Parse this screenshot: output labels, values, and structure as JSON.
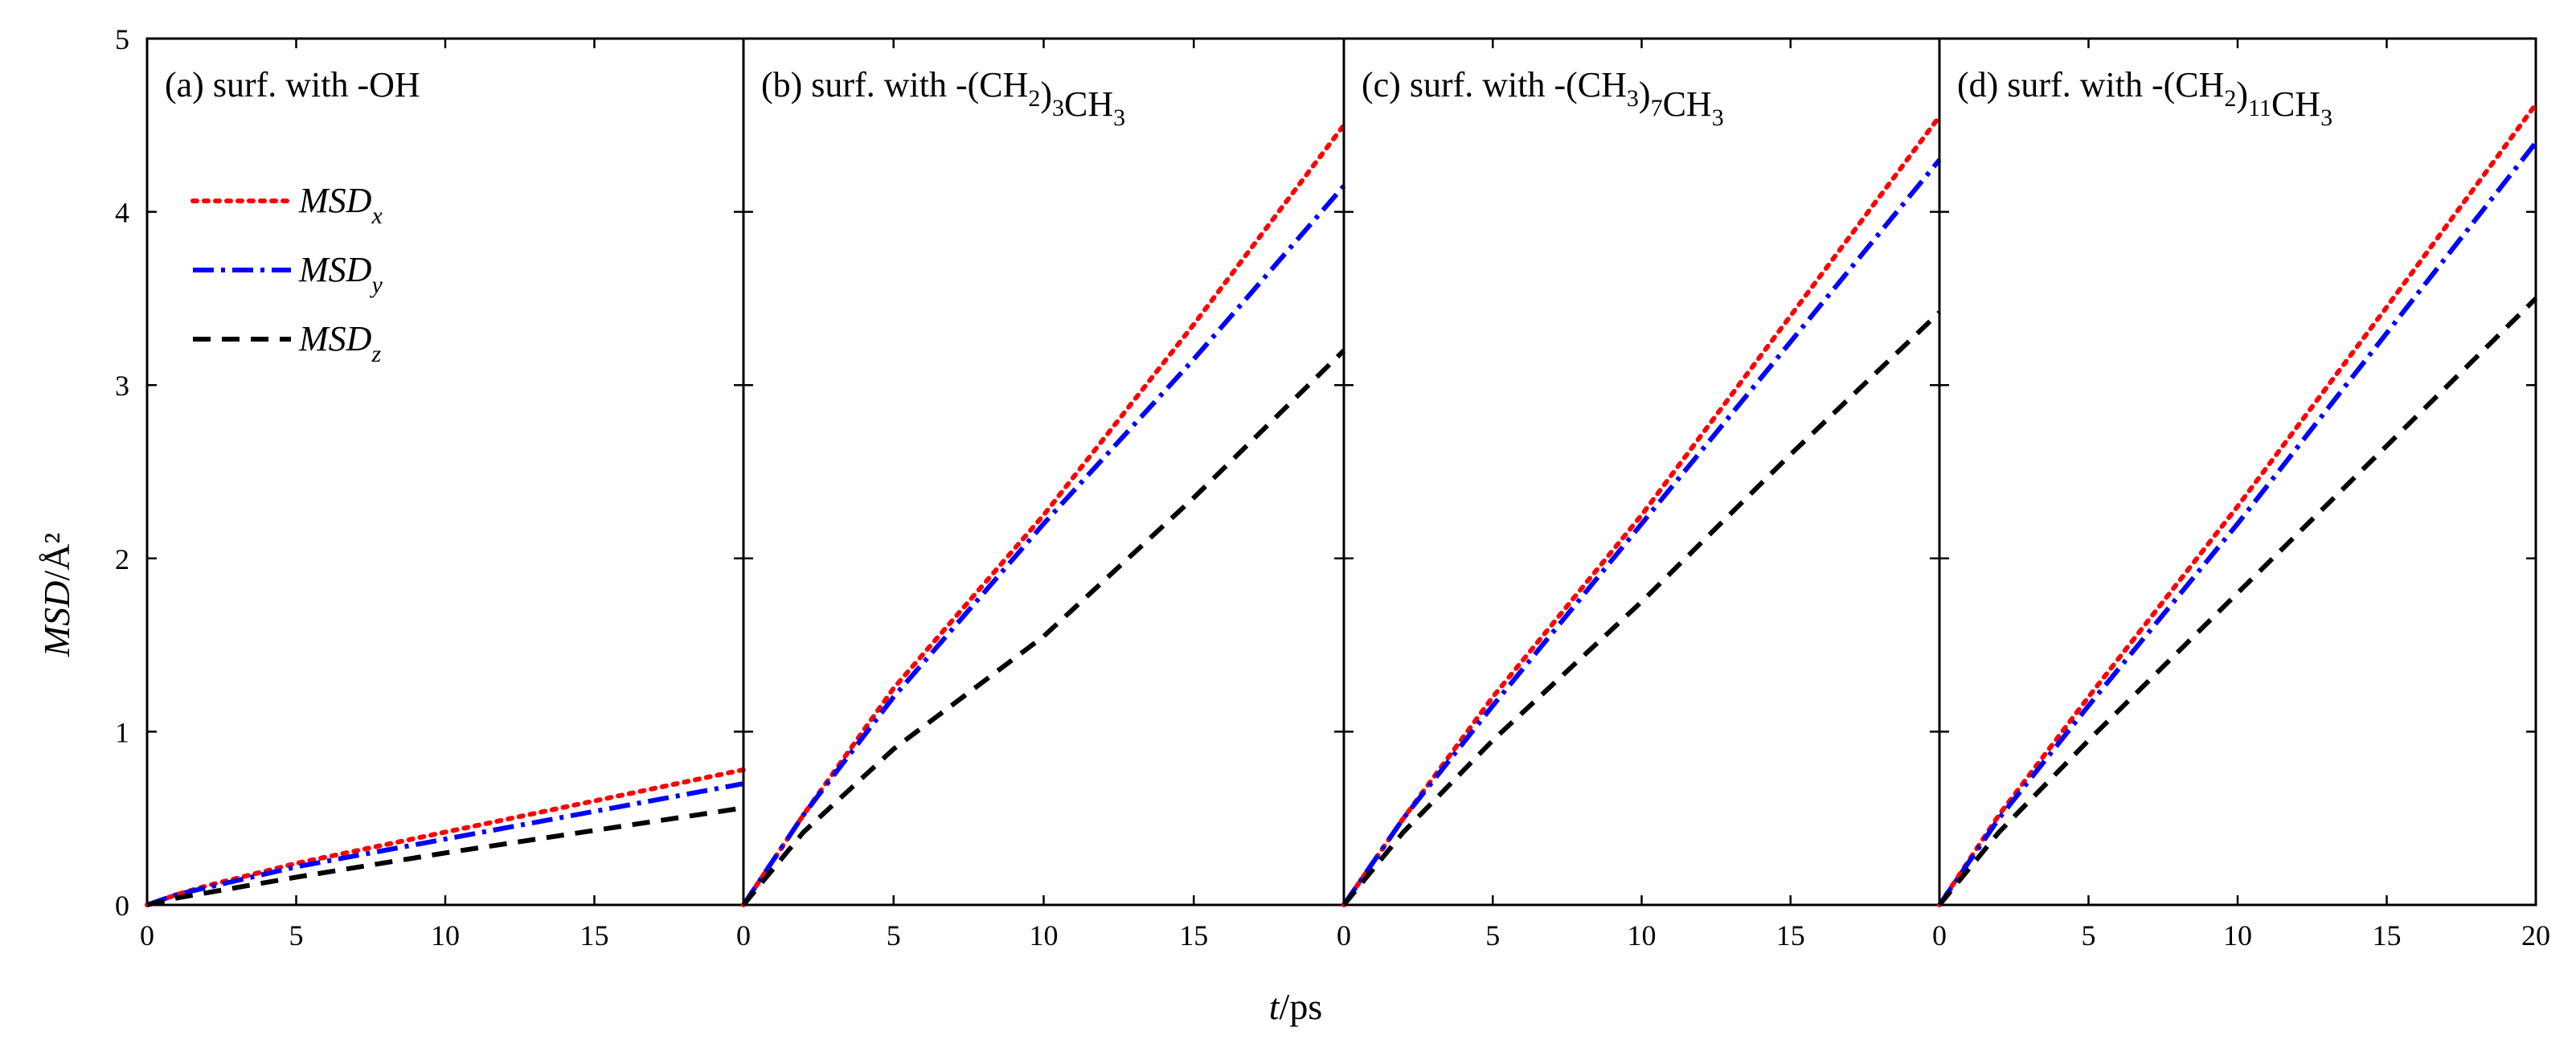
{
  "chart_data": {
    "type": "line",
    "shared": {
      "ylabel_italic": "MSD",
      "ylabel_unit": "/Å²",
      "xlabel_italic": "t",
      "xlabel_unit": "/ps",
      "xlim": [
        0,
        20
      ],
      "ylim": [
        0,
        5
      ],
      "x_ticks": [
        "0",
        "5",
        "10",
        "15"
      ],
      "x_ticks_last_panel": [
        "0",
        "5",
        "10",
        "15",
        "20"
      ],
      "y_ticks": [
        "0",
        "1",
        "2",
        "3",
        "4",
        "5"
      ],
      "legend": [
        {
          "base": "MSD",
          "sub": "x",
          "color": "#ff0000",
          "style": "dotted"
        },
        {
          "base": "MSD",
          "sub": "y",
          "color": "#0000ff",
          "style": "dash-dot"
        },
        {
          "base": "MSD",
          "sub": "z",
          "color": "#000000",
          "style": "dashed"
        }
      ]
    },
    "panels": [
      {
        "id": "a",
        "title": "(a) surf. with -OH",
        "title_parts": [
          {
            "t": "(a) surf. with -OH"
          }
        ],
        "series": [
          {
            "name": "MSD_x",
            "color": "#ff0000",
            "x": [
              0,
              1,
              2,
              5,
              10,
              15,
              20
            ],
            "y": [
              0,
              0.06,
              0.11,
              0.24,
              0.42,
              0.6,
              0.78
            ]
          },
          {
            "name": "MSD_y",
            "color": "#0000ff",
            "x": [
              0,
              1,
              2,
              5,
              10,
              15,
              20
            ],
            "y": [
              0,
              0.06,
              0.1,
              0.22,
              0.38,
              0.54,
              0.7
            ]
          },
          {
            "name": "MSD_z",
            "color": "#000000",
            "x": [
              0,
              1,
              2,
              5,
              10,
              15,
              20
            ],
            "y": [
              0,
              0.04,
              0.07,
              0.16,
              0.3,
              0.43,
              0.56
            ]
          }
        ]
      },
      {
        "id": "b",
        "title": "(b) surf. with -(CH2)3CH3",
        "title_parts": [
          {
            "t": "(b) surf. with -(CH"
          },
          {
            "t": "2",
            "sub": true
          },
          {
            "t": ")"
          },
          {
            "t": "3",
            "sub": true
          },
          {
            "t": "CH"
          },
          {
            "t": "3",
            "sub": true
          }
        ],
        "series": [
          {
            "name": "MSD_x",
            "color": "#ff0000",
            "x": [
              0,
              2,
              5,
              10,
              15,
              20
            ],
            "y": [
              0,
              0.52,
              1.25,
              2.25,
              3.35,
              4.5
            ]
          },
          {
            "name": "MSD_y",
            "color": "#0000ff",
            "x": [
              0,
              2,
              5,
              10,
              15,
              20
            ],
            "y": [
              0,
              0.52,
              1.2,
              2.2,
              3.15,
              4.15
            ]
          },
          {
            "name": "MSD_z",
            "color": "#000000",
            "x": [
              0,
              2,
              5,
              10,
              15,
              20
            ],
            "y": [
              0,
              0.42,
              0.9,
              1.55,
              2.35,
              3.2
            ]
          }
        ]
      },
      {
        "id": "c",
        "title": "(c) surf. with -(CH3)7CH3",
        "title_parts": [
          {
            "t": "(c) surf. with -(CH"
          },
          {
            "t": "3",
            "sub": true
          },
          {
            "t": ")"
          },
          {
            "t": "7",
            "sub": true
          },
          {
            "t": "CH"
          },
          {
            "t": "3",
            "sub": true
          }
        ],
        "series": [
          {
            "name": "MSD_x",
            "color": "#ff0000",
            "x": [
              0,
              2,
              5,
              10,
              15,
              20
            ],
            "y": [
              0,
              0.5,
              1.2,
              2.25,
              3.4,
              4.55
            ]
          },
          {
            "name": "MSD_y",
            "color": "#0000ff",
            "x": [
              0,
              2,
              5,
              10,
              15,
              20
            ],
            "y": [
              0,
              0.5,
              1.15,
              2.2,
              3.25,
              4.3
            ]
          },
          {
            "name": "MSD_z",
            "color": "#000000",
            "x": [
              0,
              2,
              5,
              10,
              15,
              20
            ],
            "y": [
              0,
              0.42,
              0.95,
              1.75,
              2.6,
              3.42
            ]
          }
        ]
      },
      {
        "id": "d",
        "title": "(d) surf. with -(CH2)11CH3",
        "title_parts": [
          {
            "t": "(d) surf. with -(CH"
          },
          {
            "t": "2",
            "sub": true
          },
          {
            "t": ")"
          },
          {
            "t": "11",
            "sub": true
          },
          {
            "t": "CH"
          },
          {
            "t": "3",
            "sub": true
          }
        ],
        "series": [
          {
            "name": "MSD_x",
            "color": "#ff0000",
            "x": [
              0,
              2,
              5,
              10,
              15,
              20
            ],
            "y": [
              0,
              0.52,
              1.2,
              2.3,
              3.45,
              4.62
            ]
          },
          {
            "name": "MSD_y",
            "color": "#0000ff",
            "x": [
              0,
              2,
              5,
              10,
              15,
              20
            ],
            "y": [
              0,
              0.5,
              1.15,
              2.2,
              3.3,
              4.4
            ]
          },
          {
            "name": "MSD_z",
            "color": "#000000",
            "x": [
              0,
              2,
              5,
              10,
              15,
              20
            ],
            "y": [
              0,
              0.42,
              0.95,
              1.8,
              2.65,
              3.5
            ]
          }
        ]
      }
    ]
  }
}
